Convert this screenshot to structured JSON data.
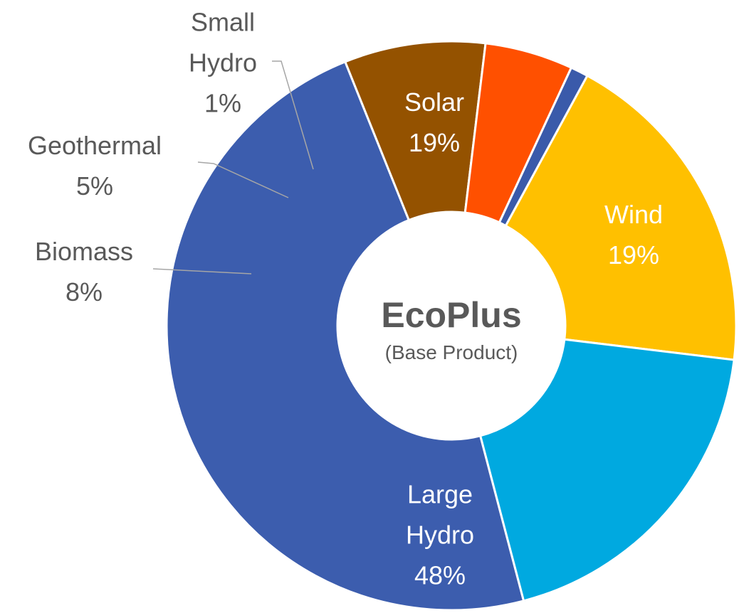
{
  "chart_data": {
    "type": "donut",
    "title": "EcoPlus",
    "subtitle": "(Base Product)",
    "categories": [
      "Solar",
      "Wind",
      "Large Hydro",
      "Biomass",
      "Geothermal",
      "Small Hydro"
    ],
    "values": [
      19,
      19,
      48,
      8,
      5,
      1
    ],
    "value_labels": [
      "19%",
      "19%",
      "48%",
      "8%",
      "5%",
      "1%"
    ],
    "colors": [
      "#ffc000",
      "#00a9e0",
      "#3c5dae",
      "#945200",
      "#ff5000",
      "#3a5aaa"
    ]
  }
}
